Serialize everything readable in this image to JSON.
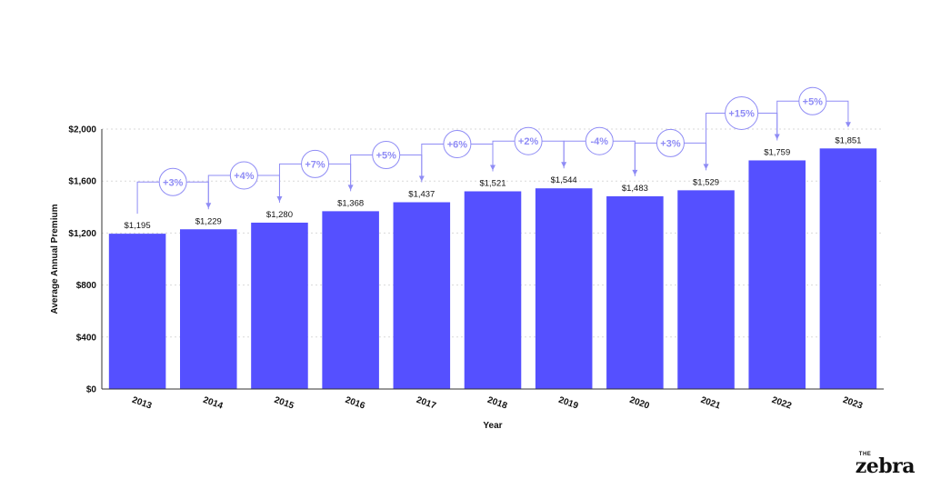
{
  "chart_data": {
    "type": "bar",
    "categories": [
      "2013",
      "2014",
      "2015",
      "2016",
      "2017",
      "2018",
      "2019",
      "2020",
      "2021",
      "2022",
      "2023"
    ],
    "values": [
      1195,
      1229,
      1280,
      1368,
      1437,
      1521,
      1544,
      1483,
      1529,
      1759,
      1851
    ],
    "data_labels": [
      "$1,195",
      "$1,229",
      "$1,280",
      "$1,368",
      "$1,437",
      "$1,521",
      "$1,544",
      "$1,483",
      "$1,529",
      "$1,759",
      "$1,851"
    ],
    "changes": [
      "+3%",
      "+4%",
      "+7%",
      "+5%",
      "+6%",
      "+2%",
      "-4%",
      "+3%",
      "+15%",
      "+5%"
    ],
    "xlabel": "Year",
    "ylabel": "Average Annual Premium",
    "ylim": [
      0,
      2000
    ],
    "yticks": [
      0,
      400,
      800,
      1200,
      1600,
      2000
    ],
    "ytick_labels": [
      "$0",
      "$400",
      "$800",
      "$1,200",
      "$1,600",
      "$2,000"
    ],
    "grid": true,
    "bar_color": "#5550ff",
    "annotation_color": "#8f8cf5"
  },
  "brand": {
    "small": "THE",
    "name": "zebra"
  }
}
